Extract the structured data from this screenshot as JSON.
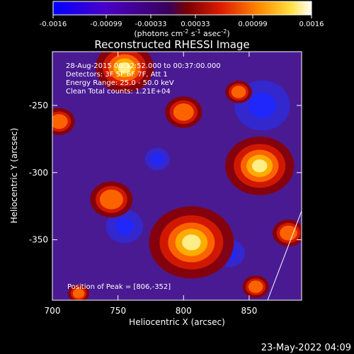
{
  "colorbar": {
    "ticks": [
      "-0.0016",
      "-0.00099",
      "-0.00033",
      "0.00033",
      "0.00099",
      "0.0016"
    ],
    "unit_label": "(photons cm",
    "unit_exp1": "-2",
    "unit_mid": " s",
    "unit_exp2": "-1",
    "unit_mid2": " asec",
    "unit_exp3": "-2",
    "unit_end": ")"
  },
  "chart_data": {
    "type": "heatmap",
    "title": "Reconstructed RHESSI Image",
    "xlabel": "Heliocentric X (arcsec)",
    "ylabel": "Heliocentric Y (arcsec)",
    "xlim": [
      700,
      890
    ],
    "ylim": [
      -395,
      -210
    ],
    "x_ticks": [
      "700",
      "750",
      "800",
      "850"
    ],
    "y_ticks": [
      "-250",
      "-300",
      "-350"
    ],
    "x_tick_values": [
      700,
      750,
      800,
      850
    ],
    "y_tick_values": [
      -250,
      -300,
      -350
    ],
    "colorscale_range": [
      -0.0016,
      0.0016
    ],
    "annotations": [
      "28-Aug-2015 00:32:52.000 to 00:37:00.000",
      "Detectors: 3F 5F 6F 7F, Att 1",
      "Energy Range: 25.0 - 50.0 keV",
      "Clean    Total counts: 1.21E+04"
    ],
    "peak_label": "Position of Peak = [806,-352]",
    "peak": [
      806,
      -352
    ],
    "hot_spots": [
      {
        "x": 806,
        "y": -352,
        "value": 0.0016
      },
      {
        "x": 858,
        "y": -295,
        "value": 0.0013
      },
      {
        "x": 755,
        "y": -222,
        "value": 0.0011
      },
      {
        "x": 745,
        "y": -320,
        "value": 0.0008
      },
      {
        "x": 800,
        "y": -255,
        "value": 0.0007
      },
      {
        "x": 880,
        "y": -345,
        "value": 0.0006
      },
      {
        "x": 705,
        "y": -262,
        "value": 0.0006
      },
      {
        "x": 842,
        "y": -240,
        "value": 0.0005
      },
      {
        "x": 855,
        "y": -385,
        "value": 0.0005
      },
      {
        "x": 720,
        "y": -390,
        "value": 0.0004
      }
    ],
    "cold_spots": [
      {
        "x": 860,
        "y": -250,
        "value": -0.0009
      },
      {
        "x": 755,
        "y": -340,
        "value": -0.0006
      },
      {
        "x": 835,
        "y": -360,
        "value": -0.0005
      },
      {
        "x": 780,
        "y": -290,
        "value": -0.0004
      }
    ]
  },
  "timestamp": "23-May-2022 04:09"
}
